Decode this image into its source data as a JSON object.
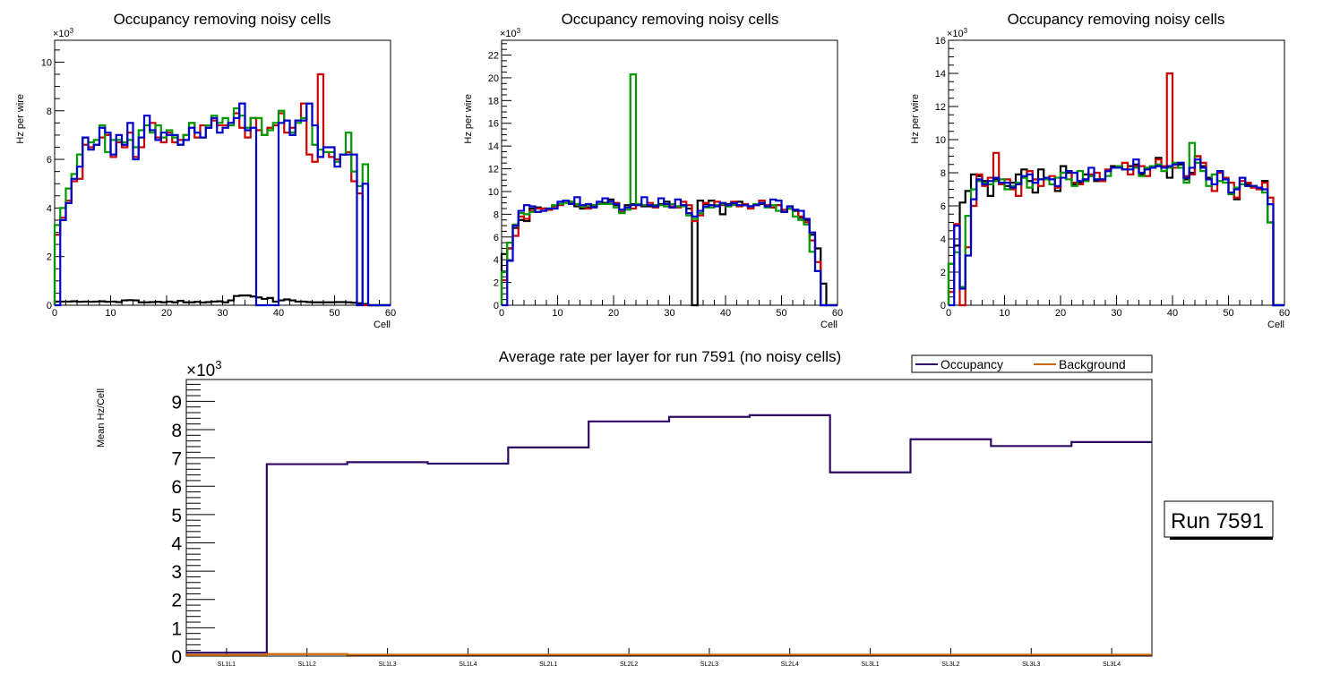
{
  "chart_data": [
    {
      "type": "line",
      "style": "step-histogram",
      "title": "Occupancy removing noisy cells",
      "xlabel": "Cell",
      "ylabel": "Hz per wire",
      "y_multiplier_label": "×10",
      "y_multiplier_exp": "3",
      "xlim": [
        0,
        60
      ],
      "ylim": [
        0,
        10.9
      ],
      "x_ticks": [
        0,
        10,
        20,
        30,
        40,
        50,
        60
      ],
      "y_ticks": [
        0,
        2,
        4,
        6,
        8,
        10
      ],
      "bins": 60,
      "series": [
        {
          "name": "black",
          "color": "#000000",
          "values": [
            0.15,
            0.15,
            0.15,
            0.16,
            0.14,
            0.15,
            0.14,
            0.15,
            0.16,
            0.14,
            0.15,
            0.13,
            0.2,
            0.21,
            0.2,
            0.12,
            0.12,
            0.13,
            0.14,
            0.12,
            0.15,
            0.12,
            0.18,
            0.12,
            0.12,
            0.14,
            0.11,
            0.13,
            0.15,
            0.16,
            0.12,
            0.2,
            0.38,
            0.4,
            0.4,
            0.36,
            0.32,
            0.26,
            0.3,
            0.15,
            0.2,
            0.24,
            0.2,
            0.15,
            0.15,
            0.13,
            0.12,
            0.12,
            0.12,
            0.12,
            0.13,
            0.13,
            0.12,
            0.1,
            0.08,
            0.05,
            0,
            0,
            0,
            0
          ]
        },
        {
          "name": "red",
          "color": "#cc0000",
          "values": [
            2.9,
            3.6,
            4.3,
            5.1,
            5.2,
            6.6,
            6.5,
            6.6,
            6.9,
            7.0,
            6.1,
            6.7,
            6.5,
            7.1,
            6.1,
            6.5,
            7.4,
            7.5,
            6.9,
            6.7,
            7.1,
            6.7,
            6.8,
            7.0,
            7.5,
            6.9,
            7.4,
            7.3,
            7.6,
            7.4,
            7.4,
            7.5,
            7.9,
            7.3,
            6.9,
            7.7,
            7.2,
            7.0,
            7.3,
            7.4,
            7.9,
            7.1,
            7.3,
            7.6,
            8.3,
            6.2,
            5.9,
            9.5,
            6.3,
            6.1,
            6.0,
            6.2,
            6.3,
            5.1,
            4.6,
            0,
            0,
            0,
            0,
            0
          ]
        },
        {
          "name": "green",
          "color": "#009900",
          "values": [
            3.3,
            4.0,
            4.8,
            5.4,
            6.2,
            6.9,
            6.7,
            6.8,
            7.4,
            6.3,
            6.8,
            6.8,
            6.7,
            6.8,
            6.5,
            7.2,
            7.4,
            7.1,
            7.4,
            6.9,
            7.2,
            6.9,
            6.6,
            7.0,
            7.5,
            7.1,
            6.9,
            7.4,
            7.8,
            7.5,
            7.7,
            7.4,
            8.1,
            7.8,
            7.3,
            7.7,
            7.7,
            7.0,
            7.2,
            7.5,
            8.0,
            7.6,
            7.1,
            7.5,
            7.7,
            8.3,
            6.6,
            6.4,
            6.3,
            6.3,
            5.9,
            6.2,
            7.1,
            5.5,
            4.9,
            5.8,
            0,
            0,
            0,
            0
          ]
        },
        {
          "name": "blue",
          "color": "#0000cc",
          "values": [
            0,
            3.5,
            4.2,
            5.2,
            5.7,
            6.9,
            6.4,
            6.6,
            7.3,
            7.1,
            6.2,
            7.0,
            6.6,
            7.5,
            6.0,
            6.9,
            7.8,
            7.2,
            6.8,
            7.1,
            7.0,
            7.0,
            6.6,
            6.8,
            7.3,
            7.1,
            6.9,
            7.3,
            7.7,
            7.1,
            7.3,
            7.5,
            7.7,
            8.3,
            7.2,
            7.3,
            0,
            0,
            0,
            0,
            7.5,
            7.6,
            7.0,
            7.6,
            7.6,
            8.3,
            7.4,
            6.1,
            6.5,
            6.5,
            5.7,
            6.2,
            6.2,
            6.2,
            0,
            5.0,
            0,
            0,
            0,
            0
          ]
        }
      ]
    },
    {
      "type": "line",
      "style": "step-histogram",
      "title": "Occupancy removing noisy cells",
      "xlabel": "Cell",
      "ylabel": "Hz per wire",
      "y_multiplier_label": "×10",
      "y_multiplier_exp": "3",
      "xlim": [
        0,
        60
      ],
      "ylim": [
        0,
        23.3
      ],
      "x_ticks": [
        0,
        10,
        20,
        30,
        40,
        50,
        60
      ],
      "y_ticks": [
        0,
        2,
        4,
        6,
        8,
        10,
        12,
        14,
        16,
        18,
        20,
        22
      ],
      "bins": 60,
      "series": [
        {
          "name": "black",
          "color": "#000000",
          "values": [
            4.5,
            5.0,
            6.8,
            7.5,
            7.4,
            8.5,
            8.6,
            8.5,
            8.4,
            8.7,
            8.9,
            9.2,
            9.1,
            8.7,
            8.5,
            8.6,
            8.7,
            8.9,
            9.0,
            9.3,
            8.8,
            8.4,
            8.8,
            8.9,
            8.9,
            8.7,
            8.7,
            8.8,
            8.9,
            9.1,
            8.6,
            8.7,
            8.8,
            8.5,
            0,
            9.2,
            8.9,
            9.2,
            8.8,
            8.0,
            8.9,
            8.9,
            9.1,
            8.8,
            8.7,
            8.8,
            8.9,
            8.8,
            8.6,
            8.8,
            8.2,
            8.5,
            8.3,
            7.7,
            7.5,
            6.2,
            5.0,
            1.9,
            0,
            0
          ]
        },
        {
          "name": "red",
          "color": "#cc0000",
          "values": [
            2.2,
            5.0,
            6.1,
            7.8,
            7.6,
            8.3,
            8.5,
            8.5,
            8.4,
            8.7,
            8.8,
            9.2,
            9.0,
            8.9,
            8.7,
            8.5,
            8.8,
            8.9,
            8.9,
            8.9,
            9.0,
            8.2,
            8.6,
            8.5,
            8.8,
            8.8,
            9.0,
            8.6,
            8.8,
            8.7,
            8.7,
            8.6,
            9.1,
            8.8,
            7.4,
            7.9,
            9.0,
            8.8,
            9.1,
            8.8,
            8.7,
            9.1,
            8.7,
            8.9,
            8.5,
            8.8,
            9.2,
            8.8,
            8.6,
            8.8,
            8.4,
            8.5,
            8.4,
            7.8,
            7.3,
            5.7,
            3.8,
            0,
            0,
            0
          ]
        },
        {
          "name": "green",
          "color": "#009900",
          "values": [
            2.9,
            5.5,
            7.1,
            8.1,
            8.0,
            8.2,
            8.2,
            8.3,
            8.5,
            8.8,
            8.9,
            9.0,
            9.1,
            8.9,
            8.7,
            8.8,
            8.8,
            8.9,
            8.9,
            8.9,
            8.6,
            8.1,
            8.4,
            20.3,
            8.9,
            8.8,
            8.8,
            8.8,
            8.8,
            8.7,
            8.9,
            8.7,
            8.7,
            7.9,
            7.6,
            8.1,
            8.6,
            8.6,
            8.8,
            8.9,
            8.7,
            8.8,
            8.8,
            8.8,
            8.7,
            8.9,
            9.0,
            8.6,
            8.8,
            8.3,
            8.2,
            8.5,
            7.8,
            7.5,
            7.1,
            4.7,
            3.0,
            0,
            0,
            0
          ]
        },
        {
          "name": "blue",
          "color": "#0000cc",
          "values": [
            0,
            3.9,
            7.0,
            8.3,
            8.8,
            8.7,
            8.2,
            8.3,
            8.5,
            8.5,
            9.1,
            9.2,
            8.9,
            9.5,
            8.8,
            8.9,
            8.6,
            9.1,
            9.4,
            9.1,
            8.9,
            8.4,
            8.6,
            8.8,
            8.8,
            9.5,
            8.8,
            8.7,
            9.4,
            8.9,
            8.6,
            9.3,
            8.8,
            8.1,
            7.8,
            8.3,
            8.7,
            8.8,
            8.7,
            9.0,
            8.8,
            9.0,
            8.8,
            8.8,
            8.7,
            8.8,
            9.0,
            8.7,
            9.3,
            9.2,
            8.2,
            8.7,
            8.4,
            8.3,
            7.6,
            6.4,
            3.0,
            0,
            0,
            0
          ]
        }
      ]
    },
    {
      "type": "line",
      "style": "step-histogram",
      "title": "Occupancy removing noisy cells",
      "xlabel": "Cell",
      "ylabel": "Hz per wire",
      "y_multiplier_label": "×10",
      "y_multiplier_exp": "3",
      "xlim": [
        0,
        60
      ],
      "ylim": [
        0,
        16
      ],
      "x_ticks": [
        0,
        10,
        20,
        30,
        40,
        50,
        60
      ],
      "y_ticks": [
        0,
        2,
        4,
        6,
        8,
        10,
        12,
        14,
        16
      ],
      "bins": 60,
      "series": [
        {
          "name": "black",
          "color": "#000000",
          "values": [
            2.5,
            3.6,
            6.2,
            6.9,
            7.9,
            7.8,
            7.5,
            6.6,
            7.6,
            7.4,
            7.2,
            7.4,
            7.9,
            8.2,
            7.5,
            6.8,
            8.2,
            7.7,
            7.6,
            6.9,
            8.4,
            8.0,
            7.3,
            7.4,
            7.9,
            7.8,
            7.5,
            7.5,
            8.1,
            8.4,
            8.3,
            8.2,
            8.4,
            8.5,
            7.9,
            8.3,
            8.4,
            8.9,
            8.4,
            7.7,
            8.5,
            8.5,
            7.6,
            8.0,
            9.0,
            8.4,
            7.7,
            7.3,
            8.0,
            7.6,
            6.8,
            6.4,
            7.7,
            7.3,
            7.2,
            7.1,
            7.5,
            5.0,
            0,
            0
          ]
        },
        {
          "name": "red",
          "color": "#cc0000",
          "values": [
            0.8,
            4.9,
            0,
            3.5,
            6.0,
            7.9,
            7.2,
            7.7,
            9.2,
            7.3,
            7.6,
            7.0,
            6.6,
            7.7,
            8.1,
            7.6,
            7.2,
            7.7,
            7.8,
            7.1,
            8.0,
            8.1,
            7.4,
            7.3,
            7.6,
            7.9,
            8.0,
            7.5,
            8.2,
            8.3,
            8.4,
            8.6,
            7.9,
            8.4,
            8.4,
            7.8,
            8.4,
            8.8,
            8.4,
            14.0,
            8.3,
            8.6,
            7.8,
            7.9,
            9.0,
            8.6,
            7.6,
            6.9,
            8.0,
            7.7,
            7.4,
            6.5,
            7.5,
            7.4,
            7.1,
            7.0,
            7.4,
            6.5,
            0,
            0
          ]
        },
        {
          "name": "green",
          "color": "#009900",
          "values": [
            2.5,
            3.2,
            1.1,
            5.4,
            7.0,
            7.5,
            7.4,
            7.3,
            7.5,
            7.6,
            7.0,
            7.2,
            7.4,
            7.7,
            7.1,
            7.4,
            7.6,
            7.6,
            7.3,
            7.7,
            8.0,
            7.6,
            7.2,
            8.1,
            7.5,
            7.8,
            7.6,
            7.6,
            7.8,
            8.3,
            8.4,
            8.2,
            8.2,
            8.3,
            7.8,
            8.3,
            8.4,
            8.5,
            8.1,
            8.3,
            8.6,
            8.3,
            7.4,
            9.8,
            8.6,
            8.1,
            7.2,
            7.9,
            7.5,
            7.4,
            6.7,
            7.1,
            7.3,
            7.2,
            7.2,
            7.1,
            6.8,
            5.0,
            0,
            0
          ]
        },
        {
          "name": "blue",
          "color": "#0000cc",
          "values": [
            0,
            4.8,
            1.0,
            3.0,
            6.4,
            7.6,
            7.3,
            7.5,
            7.7,
            7.4,
            7.4,
            7.1,
            7.3,
            7.8,
            7.9,
            7.4,
            7.6,
            7.7,
            7.6,
            7.2,
            7.7,
            8.1,
            8.0,
            7.5,
            7.6,
            8.3,
            7.6,
            7.6,
            8.1,
            8.3,
            8.3,
            8.2,
            8.2,
            8.8,
            8.0,
            8.2,
            8.3,
            8.4,
            8.3,
            8.4,
            8.5,
            8.6,
            7.7,
            8.3,
            8.8,
            8.3,
            7.6,
            7.3,
            8.1,
            7.6,
            6.8,
            7.0,
            7.7,
            7.2,
            7.2,
            7.1,
            7.0,
            6.1,
            0,
            0
          ]
        }
      ]
    },
    {
      "type": "line",
      "style": "step-histogram",
      "title": "Average rate per layer for run 7591 (no noisy cells)",
      "xlabel": "",
      "ylabel": "Mean Hz/Cell",
      "y_multiplier_label": "×10",
      "y_multiplier_exp": "3",
      "ylim": [
        0,
        9.77
      ],
      "y_ticks": [
        0,
        1,
        2,
        3,
        4,
        5,
        6,
        7,
        8,
        9
      ],
      "categories": [
        "SL1L1",
        "SL1L2",
        "SL1L3",
        "SL1L4",
        "SL2L1",
        "SL2L2",
        "SL2L3",
        "SL2L4",
        "SL3L1",
        "SL3L2",
        "SL3L3",
        "SL3L4"
      ],
      "legend_position": "top-right",
      "series": [
        {
          "name": "Occupancy",
          "color": "#2e0a66",
          "values": [
            0.12,
            6.78,
            6.85,
            6.8,
            7.37,
            8.29,
            8.45,
            8.51,
            6.49,
            7.66,
            7.42,
            7.56
          ]
        },
        {
          "name": "Background",
          "color": "#cc6600",
          "values": [
            0.04,
            0.07,
            0.05,
            0.05,
            0.05,
            0.05,
            0.05,
            0.05,
            0.05,
            0.05,
            0.05,
            0.05
          ]
        }
      ]
    }
  ],
  "annotation": {
    "run_label": "Run 7591"
  }
}
